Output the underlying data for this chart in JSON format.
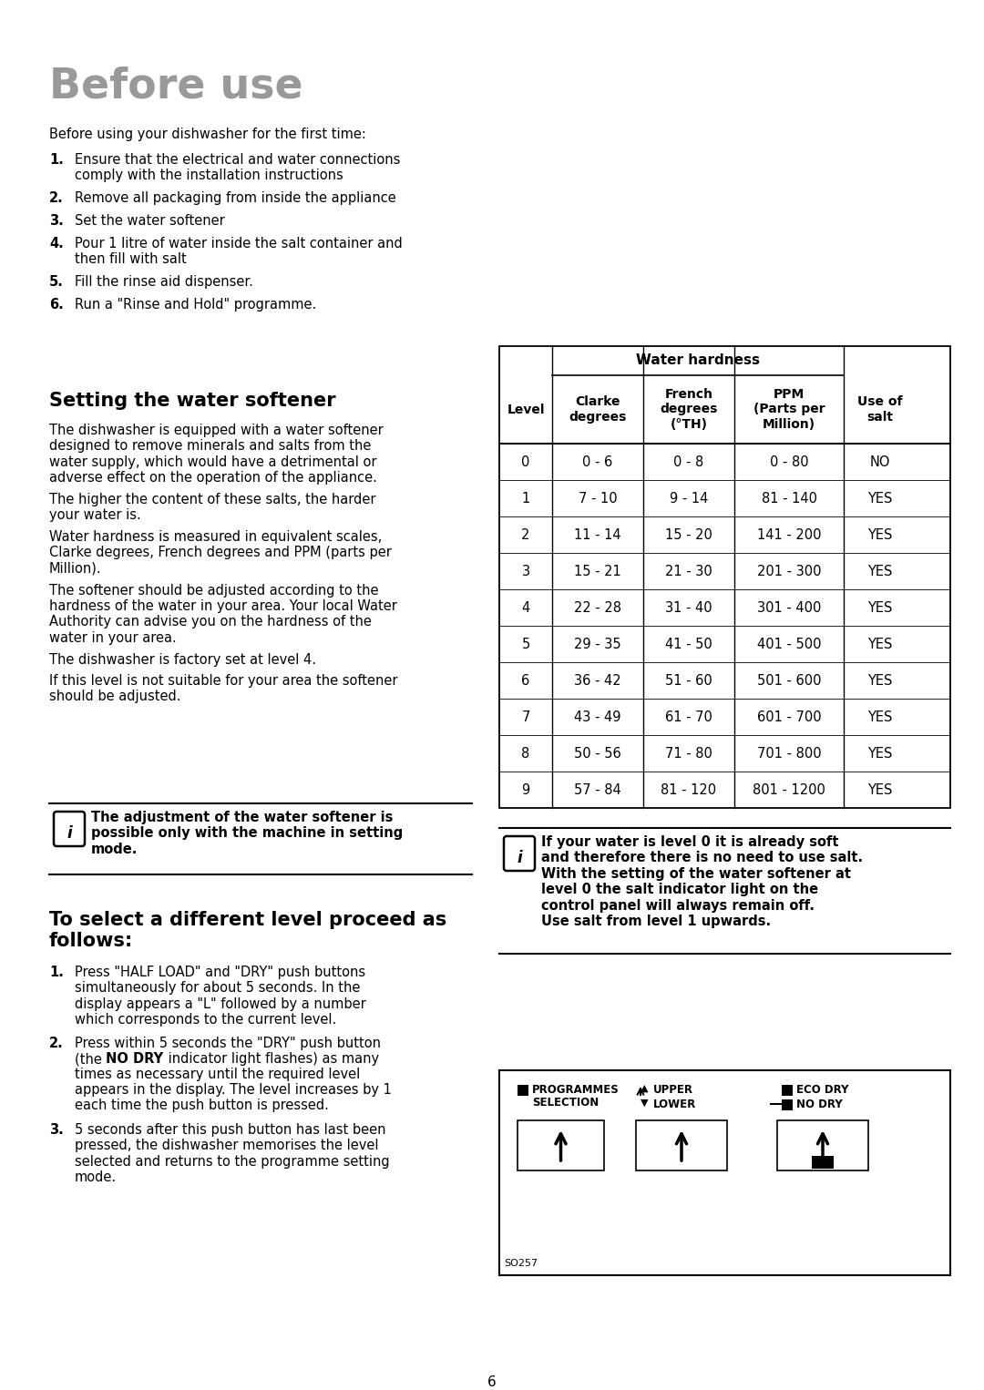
{
  "title": "Before use",
  "intro_text": "Before using your dishwasher for the first time:",
  "numbered_items": [
    [
      "1.",
      "Ensure that the electrical and water connections\ncomply with the installation instructions"
    ],
    [
      "2.",
      "Remove all packaging from inside the appliance"
    ],
    [
      "3.",
      "Set the water softener"
    ],
    [
      "4.",
      "Pour 1 litre of water inside the salt container and\nthen fill with salt"
    ],
    [
      "5.",
      "Fill the rinse aid dispenser."
    ],
    [
      "6.",
      "Run a \"Rinse and Hold\" programme."
    ]
  ],
  "section_title": "Setting the water softener",
  "paras": [
    "The dishwasher is equipped with a water softener\ndesigned to remove minerals and salts from the\nwater supply, which would have a detrimental or\nadverse effect on the operation of the appliance.",
    "The higher the content of these salts, the harder\nyour water is.",
    "Water hardness is measured in equivalent scales,\nClarke degrees, French degrees and PPM (parts per\nMillion).",
    "The softener should be adjusted according to the\nhardness of the water in your area. Your local Water\nAuthority can advise you on the hardness of the\nwater in your area.",
    "The dishwasher is factory set at level 4.",
    "If this level is not suitable for your area the softener\nshould be adjusted."
  ],
  "info_box1_text": "The adjustment of the water softener is\npossible only with the machine in setting\nmode.",
  "info_box2_text": "If your water is level 0 it is already soft\nand therefore there is no need to use salt.\nWith the setting of the water softener at\nlevel 0 the salt indicator light on the\ncontrol panel will always remain off.\nUse salt from level 1 upwards.",
  "table_header": "Water hardness",
  "table_col_headers": [
    "Level",
    "Clarke\ndegrees",
    "French\ndegrees\n(°TH)",
    "PPM\n(Parts per\nMillion)",
    "Use of\nsalt"
  ],
  "table_data": [
    [
      "0",
      "0 - 6",
      "0 - 8",
      "0 - 80",
      "NO"
    ],
    [
      "1",
      "7 - 10",
      "9 - 14",
      "81 - 140",
      "YES"
    ],
    [
      "2",
      "11 - 14",
      "15 - 20",
      "141 - 200",
      "YES"
    ],
    [
      "3",
      "15 - 21",
      "21 - 30",
      "201 - 300",
      "YES"
    ],
    [
      "4",
      "22 - 28",
      "31 - 40",
      "301 - 400",
      "YES"
    ],
    [
      "5",
      "29 - 35",
      "41 - 50",
      "401 - 500",
      "YES"
    ],
    [
      "6",
      "36 - 42",
      "51 - 60",
      "501 - 600",
      "YES"
    ],
    [
      "7",
      "43 - 49",
      "61 - 70",
      "601 - 700",
      "YES"
    ],
    [
      "8",
      "50 - 56",
      "71 - 80",
      "701 - 800",
      "YES"
    ],
    [
      "9",
      "57 - 84",
      "81 - 120",
      "801 - 1200",
      "YES"
    ]
  ],
  "section2_title": "To select a different level proceed as\nfollows:",
  "steps": [
    [
      "1.",
      "Press \"HALF LOAD\" and \"DRY\" push buttons\nsimultaneously for about 5 seconds. In the\ndisplay appears a \"L\" followed by a number\nwhich corresponds to the current level."
    ],
    [
      "2.",
      "Press within 5 seconds the \"DRY\" push button\n(the |NO DRY| indicator light flashes) as many\ntimes as necessary until the required level\nappears in the display. The level increases by 1\neach time the push button is pressed."
    ],
    [
      "3.",
      "5 seconds after this push button has last been\npressed, the dishwasher memorises the level\nselected and returns to the programme setting\nmode."
    ]
  ],
  "panel_label1a": "PROGRAMMES",
  "panel_label1b": "SELECTION",
  "panel_arrow_up": "▲ UPPER",
  "panel_arrow_down": "▼ LOWER",
  "panel_label3a": "ECO DRY",
  "panel_label3b": "NO DRY",
  "so257": "SO257",
  "page_num": "6"
}
